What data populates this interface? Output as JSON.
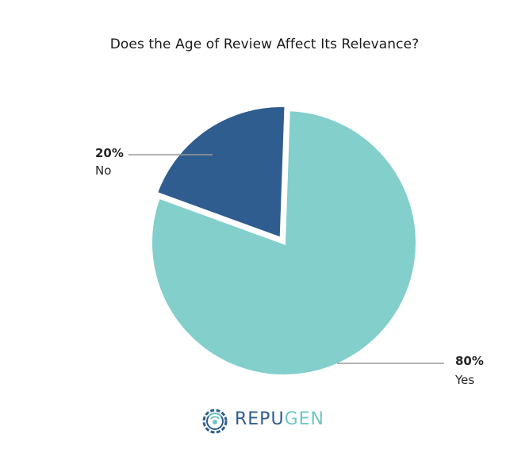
{
  "chart_data": {
    "type": "pie",
    "title": "Does the Age of Review Affect Its Relevance?",
    "slices": [
      {
        "label": "Yes",
        "value": 80,
        "value_label": "80%",
        "color": "#82cfcc"
      },
      {
        "label": "No",
        "value": 20,
        "value_label": "20%",
        "color": "#2f5d8f"
      }
    ]
  },
  "logo": {
    "text_part1": "REPU",
    "text_part2": "GEN"
  },
  "colors": {
    "leader_line": "#9a9a9a"
  }
}
